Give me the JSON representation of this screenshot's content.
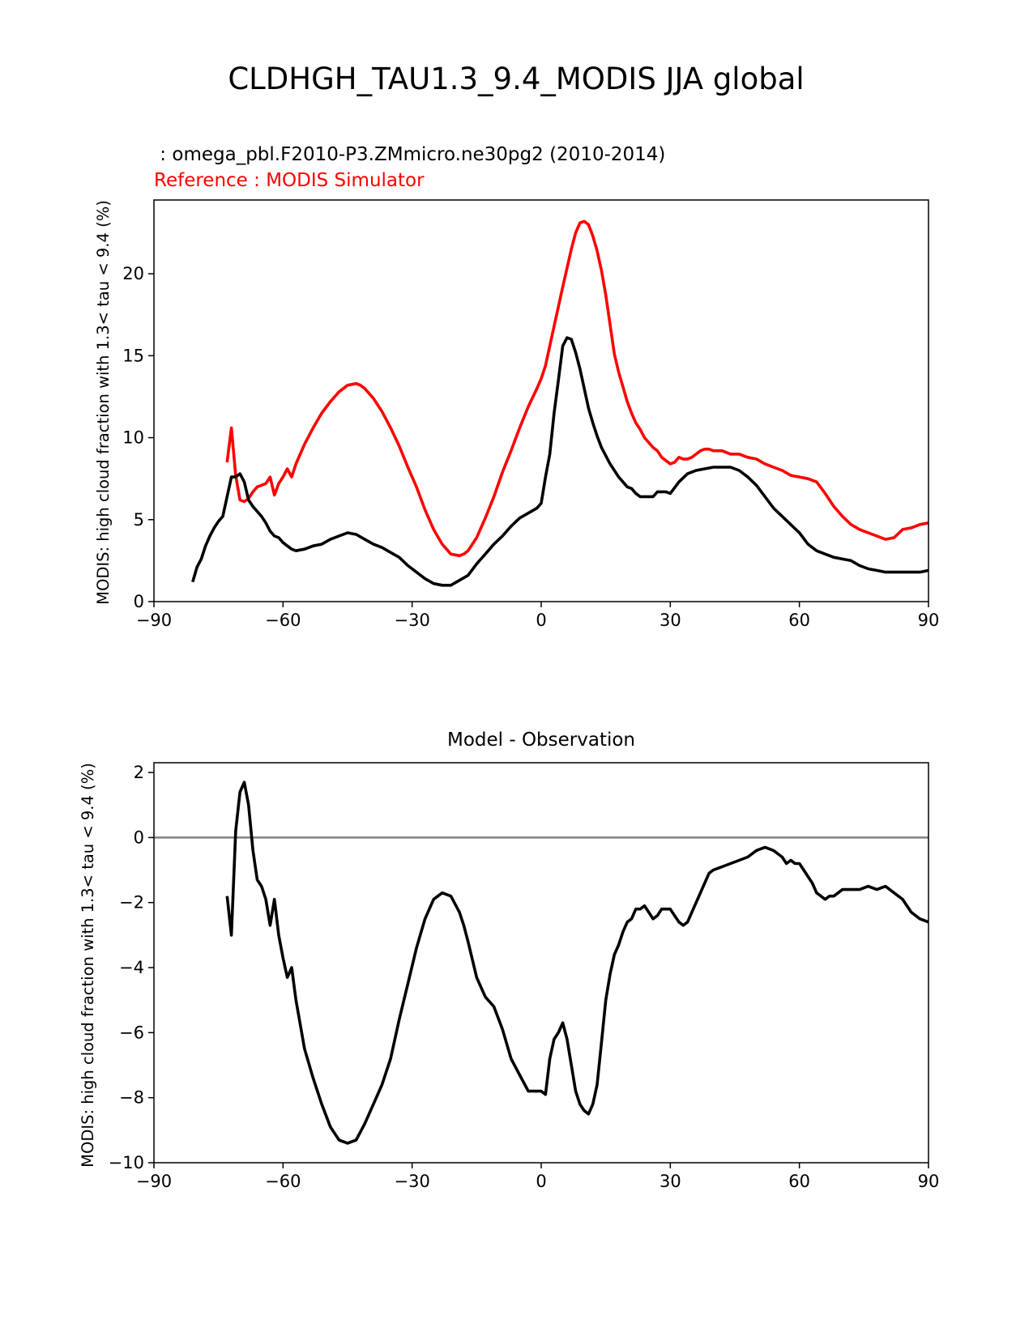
{
  "figure": {
    "suptitle": "CLDHGH_TAU1.3_9.4_MODIS JJA global"
  },
  "chart_data": [
    {
      "type": "line",
      "panel": "top",
      "test_label": " : omega_pbl.F2010-P3.ZMmicro.ne30pg2 (2010-2014)",
      "reference_label": "Reference : MODIS Simulator",
      "ylabel": "MODIS: high cloud fraction with 1.3< tau < 9.4 (%)",
      "xlabel": "",
      "xlim": [
        -90,
        90
      ],
      "ylim": [
        0,
        24.5
      ],
      "xticks": [
        -90,
        -60,
        -30,
        0,
        30,
        60,
        90
      ],
      "xtick_labels": [
        "−90",
        "−60",
        "−30",
        "0",
        "30",
        "60",
        "90"
      ],
      "yticks": [
        0,
        5,
        10,
        15,
        20
      ],
      "ytick_labels": [
        "0",
        "5",
        "10",
        "15",
        "20"
      ],
      "series": [
        {
          "name": "Reference : MODIS Simulator",
          "color": "#ff0000",
          "x": [
            -73,
            -72,
            -71,
            -70,
            -69,
            -68,
            -67,
            -66,
            -65,
            -64,
            -63,
            -62,
            -61,
            -60,
            -59,
            -58,
            -57,
            -55,
            -53,
            -51,
            -49,
            -47,
            -45,
            -43,
            -42,
            -41,
            -39,
            -37,
            -35,
            -33,
            -31,
            -29,
            -27,
            -25,
            -23,
            -21,
            -19,
            -18,
            -17,
            -15,
            -13,
            -11,
            -9,
            -7,
            -5,
            -3,
            -1,
            0,
            1,
            3,
            5,
            7,
            8,
            9,
            10,
            11,
            12,
            13,
            14,
            15,
            16,
            17,
            18,
            19,
            20,
            21,
            22,
            23,
            24,
            25,
            26,
            27,
            28,
            29,
            30,
            31,
            32,
            33,
            34,
            35,
            36,
            37,
            38,
            39,
            40,
            42,
            44,
            46,
            48,
            50,
            52,
            54,
            56,
            58,
            60,
            62,
            64,
            66,
            68,
            70,
            72,
            74,
            76,
            78,
            80,
            82,
            84,
            86,
            88,
            90
          ],
          "y": [
            8.5,
            10.6,
            7.7,
            6.2,
            6.1,
            6.3,
            6.7,
            7.0,
            7.1,
            7.2,
            7.6,
            6.5,
            7.2,
            7.6,
            8.1,
            7.6,
            8.4,
            9.6,
            10.6,
            11.5,
            12.2,
            12.8,
            13.2,
            13.3,
            13.2,
            13.0,
            12.4,
            11.6,
            10.6,
            9.5,
            8.2,
            7.0,
            5.6,
            4.4,
            3.5,
            2.9,
            2.8,
            2.9,
            3.1,
            3.9,
            5.1,
            6.4,
            7.9,
            9.2,
            10.6,
            11.9,
            13.0,
            13.6,
            14.4,
            16.8,
            19.2,
            21.5,
            22.5,
            23.1,
            23.2,
            23.0,
            22.3,
            21.4,
            20.2,
            18.7,
            16.9,
            15.1,
            14.0,
            13.1,
            12.2,
            11.5,
            10.9,
            10.5,
            10.0,
            9.7,
            9.4,
            9.2,
            8.8,
            8.6,
            8.4,
            8.5,
            8.8,
            8.7,
            8.7,
            8.8,
            9.0,
            9.2,
            9.3,
            9.3,
            9.2,
            9.2,
            9.0,
            9.0,
            8.8,
            8.7,
            8.4,
            8.2,
            8.0,
            7.7,
            7.6,
            7.5,
            7.3,
            6.6,
            5.8,
            5.2,
            4.7,
            4.4,
            4.2,
            4.0,
            3.8,
            3.9,
            4.4,
            4.5,
            4.7,
            4.8
          ]
        },
        {
          "name": "Model",
          "color": "#000000",
          "x": [
            -81,
            -80,
            -79,
            -78,
            -77,
            -76,
            -75,
            -74,
            -73,
            -72,
            -71,
            -70,
            -69,
            -68,
            -67,
            -66,
            -65,
            -64,
            -63,
            -62,
            -61,
            -60,
            -59,
            -58,
            -57,
            -55,
            -53,
            -51,
            -49,
            -47,
            -45,
            -43,
            -41,
            -39,
            -37,
            -35,
            -33,
            -31,
            -29,
            -27,
            -25,
            -23,
            -21,
            -19,
            -17,
            -15,
            -13,
            -11,
            -9,
            -7,
            -5,
            -3,
            -1,
            0,
            1,
            2,
            3,
            4,
            5,
            6,
            7,
            8,
            9,
            10,
            11,
            12,
            13,
            14,
            15,
            16,
            17,
            18,
            19,
            20,
            21,
            22,
            23,
            24,
            25,
            26,
            27,
            28,
            29,
            30,
            32,
            34,
            36,
            38,
            40,
            42,
            44,
            46,
            48,
            50,
            52,
            54,
            56,
            58,
            60,
            62,
            64,
            66,
            68,
            70,
            72,
            74,
            76,
            78,
            80,
            82,
            84,
            86,
            88,
            90
          ],
          "y": [
            1.2,
            2.1,
            2.6,
            3.4,
            4.0,
            4.5,
            4.9,
            5.2,
            6.4,
            7.6,
            7.6,
            7.8,
            7.3,
            6.2,
            5.8,
            5.5,
            5.2,
            4.8,
            4.3,
            4.0,
            3.9,
            3.6,
            3.4,
            3.2,
            3.1,
            3.2,
            3.4,
            3.5,
            3.8,
            4.0,
            4.2,
            4.1,
            3.8,
            3.5,
            3.3,
            3.0,
            2.7,
            2.2,
            1.8,
            1.4,
            1.1,
            1.0,
            1.0,
            1.3,
            1.6,
            2.3,
            2.9,
            3.5,
            4.0,
            4.6,
            5.1,
            5.4,
            5.7,
            6.0,
            7.6,
            9.0,
            11.5,
            13.5,
            15.6,
            16.1,
            16.0,
            15.2,
            14.2,
            13.0,
            11.8,
            10.9,
            10.1,
            9.4,
            8.9,
            8.4,
            8.0,
            7.6,
            7.3,
            7.0,
            6.9,
            6.6,
            6.4,
            6.4,
            6.4,
            6.4,
            6.7,
            6.7,
            6.7,
            6.6,
            7.3,
            7.8,
            8.0,
            8.1,
            8.2,
            8.2,
            8.2,
            8.0,
            7.6,
            7.1,
            6.4,
            5.7,
            5.2,
            4.7,
            4.2,
            3.5,
            3.1,
            2.9,
            2.7,
            2.6,
            2.5,
            2.2,
            2.0,
            1.9,
            1.8,
            1.8,
            1.8,
            1.8,
            1.8,
            1.9
          ]
        }
      ]
    },
    {
      "type": "line",
      "panel": "bottom",
      "title": "Model - Observation",
      "ylabel": "MODIS: high cloud fraction with 1.3< tau < 9.4 (%)",
      "xlabel": "",
      "xlim": [
        -90,
        90
      ],
      "ylim": [
        -10,
        2.3
      ],
      "xticks": [
        -90,
        -60,
        -30,
        0,
        30,
        60,
        90
      ],
      "xtick_labels": [
        "−90",
        "−60",
        "−30",
        "0",
        "30",
        "60",
        "90"
      ],
      "yticks": [
        -10,
        -8,
        -6,
        -4,
        -2,
        0,
        2
      ],
      "ytick_labels": [
        "−10",
        "−8",
        "−6",
        "−4",
        "−2",
        "0",
        "2"
      ],
      "zero_line_color": "#808080",
      "series": [
        {
          "name": "Model - Observation",
          "color": "#000000",
          "x": [
            -73,
            -72,
            -71,
            -70,
            -69,
            -68,
            -67,
            -66,
            -65,
            -64,
            -63,
            -62,
            -61,
            -60,
            -59,
            -58,
            -57,
            -55,
            -53,
            -51,
            -49,
            -47,
            -45,
            -43,
            -41,
            -39,
            -37,
            -35,
            -33,
            -31,
            -29,
            -27,
            -25,
            -23,
            -21,
            -19,
            -18,
            -17,
            -15,
            -13,
            -11,
            -9,
            -7,
            -5,
            -3,
            -2,
            -1,
            0,
            1,
            2,
            3,
            4,
            5,
            6,
            7,
            8,
            9,
            10,
            11,
            12,
            13,
            14,
            15,
            16,
            17,
            18,
            19,
            20,
            21,
            22,
            23,
            24,
            25,
            26,
            27,
            28,
            29,
            30,
            31,
            32,
            33,
            34,
            35,
            36,
            37,
            38,
            39,
            40,
            42,
            44,
            46,
            48,
            50,
            52,
            54,
            55,
            56,
            57,
            58,
            59,
            60,
            61,
            62,
            63,
            64,
            65,
            66,
            67,
            68,
            69,
            70,
            72,
            74,
            76,
            78,
            80,
            82,
            84,
            86,
            88,
            90
          ],
          "y": [
            -1.8,
            -3.0,
            0.2,
            1.4,
            1.7,
            1.0,
            -0.4,
            -1.3,
            -1.5,
            -1.9,
            -2.7,
            -1.9,
            -3.0,
            -3.7,
            -4.3,
            -4.0,
            -5.0,
            -6.5,
            -7.4,
            -8.2,
            -8.9,
            -9.3,
            -9.4,
            -9.3,
            -8.8,
            -8.2,
            -7.6,
            -6.8,
            -5.6,
            -4.5,
            -3.4,
            -2.5,
            -1.9,
            -1.7,
            -1.8,
            -2.3,
            -2.7,
            -3.2,
            -4.3,
            -4.9,
            -5.2,
            -5.9,
            -6.8,
            -7.3,
            -7.8,
            -7.8,
            -7.8,
            -7.8,
            -7.9,
            -6.8,
            -6.2,
            -6.0,
            -5.7,
            -6.2,
            -7.0,
            -7.8,
            -8.2,
            -8.4,
            -8.5,
            -8.2,
            -7.6,
            -6.3,
            -5.0,
            -4.2,
            -3.6,
            -3.3,
            -2.9,
            -2.6,
            -2.5,
            -2.2,
            -2.2,
            -2.1,
            -2.3,
            -2.5,
            -2.4,
            -2.2,
            -2.2,
            -2.2,
            -2.4,
            -2.6,
            -2.7,
            -2.6,
            -2.3,
            -2.0,
            -1.7,
            -1.4,
            -1.1,
            -1.0,
            -0.9,
            -0.8,
            -0.7,
            -0.6,
            -0.4,
            -0.3,
            -0.4,
            -0.5,
            -0.6,
            -0.8,
            -0.7,
            -0.8,
            -0.8,
            -1.0,
            -1.2,
            -1.4,
            -1.7,
            -1.8,
            -1.9,
            -1.8,
            -1.8,
            -1.7,
            -1.6,
            -1.6,
            -1.6,
            -1.5,
            -1.6,
            -1.5,
            -1.7,
            -1.9,
            -2.3,
            -2.5,
            -2.6
          ]
        }
      ]
    }
  ]
}
